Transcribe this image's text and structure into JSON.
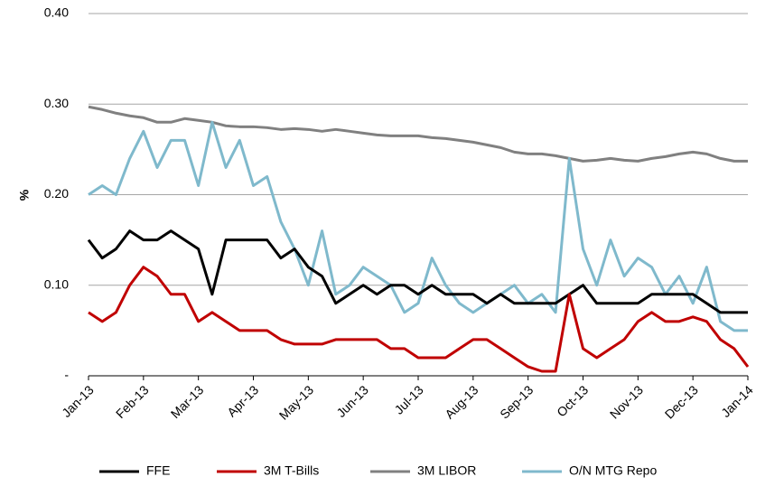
{
  "chart_data": {
    "type": "line",
    "y_label": "%",
    "x": [
      0,
      0.25,
      0.5,
      0.75,
      1,
      1.25,
      1.5,
      1.75,
      2,
      2.25,
      2.5,
      2.75,
      3,
      3.25,
      3.5,
      3.75,
      4,
      4.25,
      4.5,
      4.75,
      5,
      5.25,
      5.5,
      5.75,
      6,
      6.25,
      6.5,
      6.75,
      7,
      7.25,
      7.5,
      7.75,
      8,
      8.25,
      8.5,
      8.75,
      9,
      9.25,
      9.5,
      9.75,
      10,
      10.25,
      10.5,
      10.75,
      11,
      11.25,
      11.5,
      11.75,
      12
    ],
    "xlim": [
      0,
      12
    ],
    "xticks": [
      {
        "value": 0,
        "label": "Jan-13"
      },
      {
        "value": 1,
        "label": "Feb-13"
      },
      {
        "value": 2,
        "label": "Mar-13"
      },
      {
        "value": 3,
        "label": "Apr-13"
      },
      {
        "value": 4,
        "label": "May-13"
      },
      {
        "value": 5,
        "label": "Jun-13"
      },
      {
        "value": 6,
        "label": "Jul-13"
      },
      {
        "value": 7,
        "label": "Aug-13"
      },
      {
        "value": 8,
        "label": "Sep-13"
      },
      {
        "value": 9,
        "label": "Oct-13"
      },
      {
        "value": 10,
        "label": "Nov-13"
      },
      {
        "value": 11,
        "label": "Dec-13"
      },
      {
        "value": 12,
        "label": "Jan-14"
      }
    ],
    "ylim": [
      0,
      0.4
    ],
    "yticks": [
      {
        "value": 0,
        "label": "-"
      },
      {
        "value": 0.1,
        "label": "0.10"
      },
      {
        "value": 0.2,
        "label": "0.20"
      },
      {
        "value": 0.3,
        "label": "0.30"
      },
      {
        "value": 0.4,
        "label": "0.40"
      }
    ],
    "grid": true,
    "legend": "bottom",
    "series": [
      {
        "name": "FFE",
        "color": "#000000",
        "values": [
          0.15,
          0.13,
          0.14,
          0.16,
          0.15,
          0.15,
          0.16,
          0.15,
          0.14,
          0.09,
          0.15,
          0.15,
          0.15,
          0.15,
          0.13,
          0.14,
          0.12,
          0.11,
          0.08,
          0.09,
          0.1,
          0.09,
          0.1,
          0.1,
          0.09,
          0.1,
          0.09,
          0.09,
          0.09,
          0.08,
          0.09,
          0.08,
          0.08,
          0.08,
          0.08,
          0.09,
          0.1,
          0.08,
          0.08,
          0.08,
          0.08,
          0.09,
          0.09,
          0.09,
          0.09,
          0.08,
          0.07,
          0.07,
          0.07
        ]
      },
      {
        "name": "3M T-Bills",
        "color": "#c00000",
        "values": [
          0.07,
          0.06,
          0.07,
          0.1,
          0.12,
          0.11,
          0.09,
          0.09,
          0.06,
          0.07,
          0.06,
          0.05,
          0.05,
          0.05,
          0.04,
          0.035,
          0.035,
          0.035,
          0.04,
          0.04,
          0.04,
          0.04,
          0.03,
          0.03,
          0.02,
          0.02,
          0.02,
          0.03,
          0.04,
          0.04,
          0.03,
          0.02,
          0.01,
          0.005,
          0.005,
          0.09,
          0.03,
          0.02,
          0.03,
          0.04,
          0.06,
          0.07,
          0.06,
          0.06,
          0.065,
          0.06,
          0.04,
          0.03,
          0.01
        ]
      },
      {
        "name": "3M LIBOR",
        "color": "#808080",
        "values": [
          0.297,
          0.294,
          0.29,
          0.287,
          0.285,
          0.28,
          0.28,
          0.284,
          0.282,
          0.28,
          0.276,
          0.275,
          0.275,
          0.274,
          0.272,
          0.273,
          0.272,
          0.27,
          0.272,
          0.27,
          0.268,
          0.266,
          0.265,
          0.265,
          0.265,
          0.263,
          0.262,
          0.26,
          0.258,
          0.255,
          0.252,
          0.247,
          0.245,
          0.245,
          0.243,
          0.24,
          0.237,
          0.238,
          0.24,
          0.238,
          0.237,
          0.24,
          0.242,
          0.245,
          0.247,
          0.245,
          0.24,
          0.237,
          0.237
        ]
      },
      {
        "name": "O/N MTG Repo",
        "color": "#7fb9cc",
        "values": [
          0.2,
          0.21,
          0.2,
          0.24,
          0.27,
          0.23,
          0.26,
          0.26,
          0.21,
          0.28,
          0.23,
          0.26,
          0.21,
          0.22,
          0.17,
          0.14,
          0.1,
          0.16,
          0.09,
          0.1,
          0.12,
          0.11,
          0.1,
          0.07,
          0.08,
          0.13,
          0.1,
          0.08,
          0.07,
          0.08,
          0.09,
          0.1,
          0.08,
          0.09,
          0.07,
          0.24,
          0.14,
          0.1,
          0.15,
          0.11,
          0.13,
          0.12,
          0.09,
          0.11,
          0.08,
          0.12,
          0.06,
          0.05,
          0.05
        ]
      }
    ]
  }
}
